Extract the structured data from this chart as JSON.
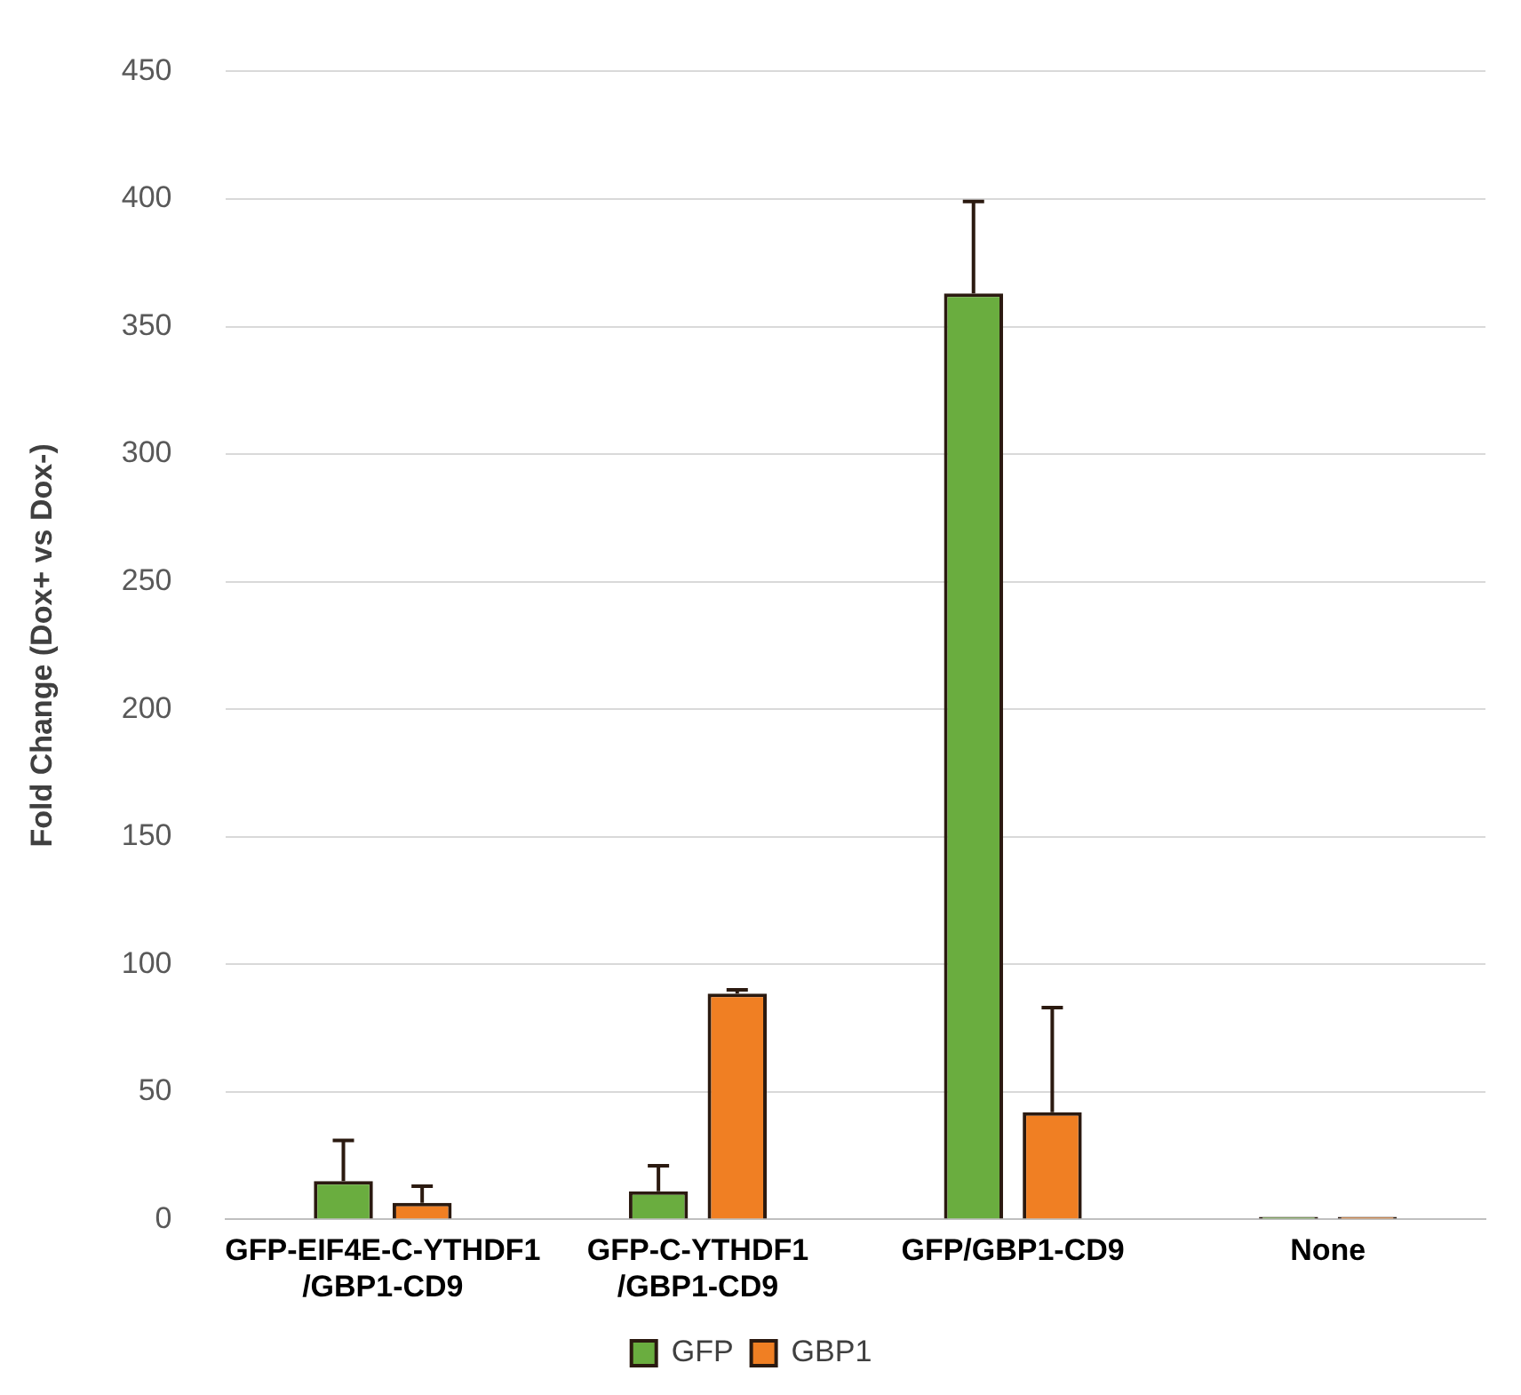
{
  "chart_data": {
    "type": "bar",
    "ylabel": "Fold Change (Dox+ vs Dox-)",
    "categories": [
      "GFP-EIF4E-C-YTHDF1 /GBP1-CD9",
      "GFP-C-YTHDF1 /GBP1-CD9",
      "GFP/GBP1-CD9",
      "None"
    ],
    "series": [
      {
        "name": "GFP",
        "color": "#6aad3f",
        "values": [
          15,
          11,
          363,
          1
        ],
        "errors": [
          [
            15,
            31
          ],
          [
            11,
            21
          ],
          [
            363,
            399
          ],
          null
        ]
      },
      {
        "name": "GBP1",
        "color": "#f07f23",
        "values": [
          6.5,
          88.5,
          42,
          1
        ],
        "errors": [
          [
            6.5,
            13
          ],
          [
            88.5,
            90
          ],
          [
            42,
            83
          ],
          null
        ]
      }
    ],
    "ylim": [
      0,
      450
    ],
    "yticks": [
      0,
      50,
      100,
      150,
      200,
      250,
      300,
      350,
      400,
      450
    ],
    "grid": "y",
    "legend": "bottom"
  }
}
